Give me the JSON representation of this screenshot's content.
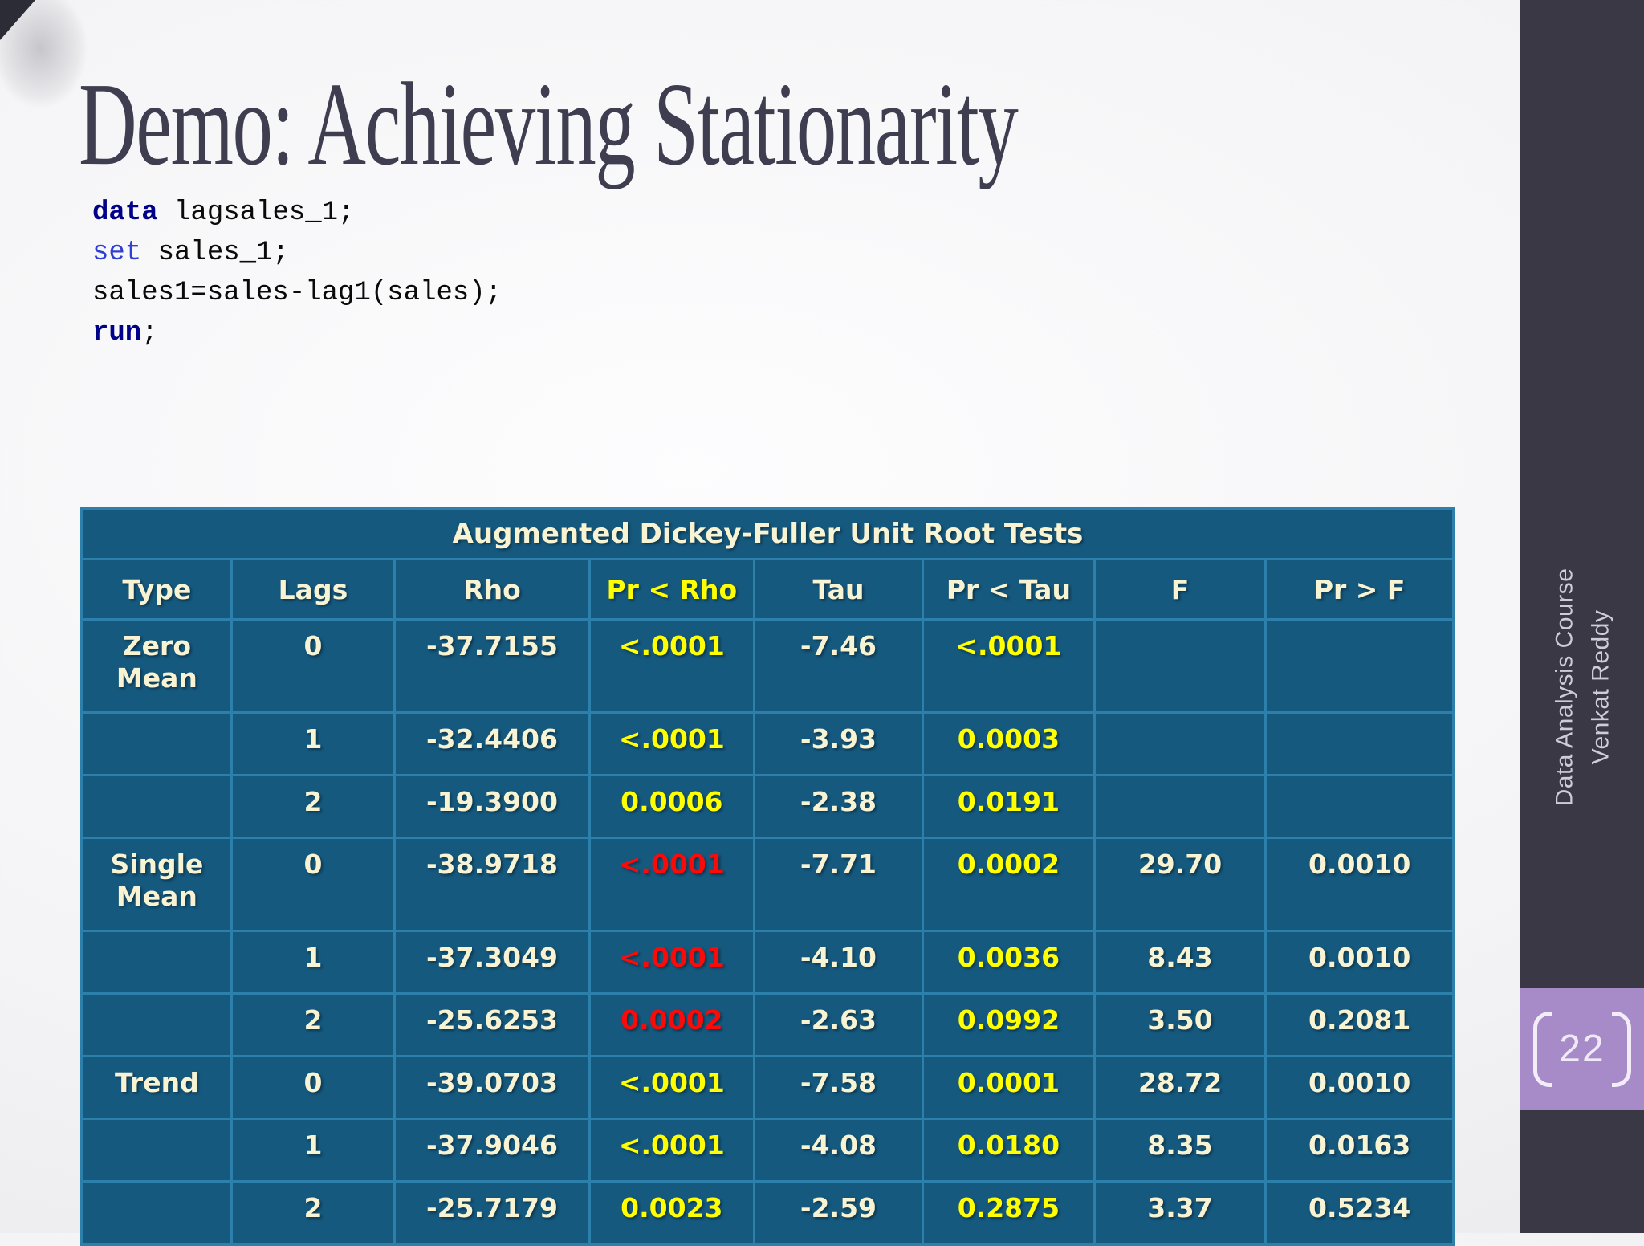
{
  "slide": {
    "title": "Demo: Achieving Stationarity",
    "background_color": "#f4f4f6"
  },
  "code": {
    "lines": [
      {
        "kw": "data",
        "rest": " lagsales_1;"
      },
      {
        "kw": "set",
        "rest": " sales_1;"
      },
      {
        "kw": "",
        "rest": "sales1=sales-lag1(sales);"
      },
      {
        "kw": "run",
        "rest": ";"
      }
    ],
    "keyword_navy_color": "#000089",
    "keyword_blue_color": "#2f3fd3"
  },
  "table": {
    "title": "Augmented Dickey-Fuller Unit Root Tests",
    "background_color": "#15597f",
    "border_color": "#2d7fac",
    "cream_color": "#f7f3d3",
    "yellow_color": "#ffff00",
    "red_color": "#fb0a0a",
    "headers": [
      {
        "t": "Type",
        "c": "w"
      },
      {
        "t": "Lags",
        "c": "w"
      },
      {
        "t": "Rho",
        "c": "w"
      },
      {
        "t": "Pr < Rho",
        "c": "y"
      },
      {
        "t": "Tau",
        "c": "w"
      },
      {
        "t": "Pr < Tau",
        "c": "w"
      },
      {
        "t": "F",
        "c": "w"
      },
      {
        "t": "Pr > F",
        "c": "w"
      }
    ],
    "rows": [
      {
        "tall": true,
        "cells": [
          {
            "t": "Zero\nMean",
            "c": "w"
          },
          {
            "t": "0",
            "c": "w"
          },
          {
            "t": "-37.7155",
            "c": "w"
          },
          {
            "t": "<.0001",
            "c": "y"
          },
          {
            "t": "-7.46",
            "c": "w"
          },
          {
            "t": "<.0001",
            "c": "y"
          },
          {
            "t": "",
            "c": "w"
          },
          {
            "t": "",
            "c": "w"
          }
        ]
      },
      {
        "tall": false,
        "cells": [
          {
            "t": "",
            "c": "w"
          },
          {
            "t": "1",
            "c": "w"
          },
          {
            "t": "-32.4406",
            "c": "w"
          },
          {
            "t": "<.0001",
            "c": "y"
          },
          {
            "t": "-3.93",
            "c": "w"
          },
          {
            "t": "0.0003",
            "c": "y"
          },
          {
            "t": "",
            "c": "w"
          },
          {
            "t": "",
            "c": "w"
          }
        ]
      },
      {
        "tall": false,
        "cells": [
          {
            "t": "",
            "c": "w"
          },
          {
            "t": "2",
            "c": "w"
          },
          {
            "t": "-19.3900",
            "c": "w"
          },
          {
            "t": "0.0006",
            "c": "y"
          },
          {
            "t": "-2.38",
            "c": "w"
          },
          {
            "t": "0.0191",
            "c": "y"
          },
          {
            "t": "",
            "c": "w"
          },
          {
            "t": "",
            "c": "w"
          }
        ]
      },
      {
        "tall": true,
        "cells": [
          {
            "t": "Single\nMean",
            "c": "w"
          },
          {
            "t": "0",
            "c": "w"
          },
          {
            "t": "-38.9718",
            "c": "w"
          },
          {
            "t": "<.0001",
            "c": "r"
          },
          {
            "t": "-7.71",
            "c": "w"
          },
          {
            "t": "0.0002",
            "c": "y"
          },
          {
            "t": "29.70",
            "c": "w"
          },
          {
            "t": "0.0010",
            "c": "w"
          }
        ]
      },
      {
        "tall": false,
        "cells": [
          {
            "t": "",
            "c": "w"
          },
          {
            "t": "1",
            "c": "w"
          },
          {
            "t": "-37.3049",
            "c": "w"
          },
          {
            "t": "<.0001",
            "c": "r"
          },
          {
            "t": "-4.10",
            "c": "w"
          },
          {
            "t": "0.0036",
            "c": "y"
          },
          {
            "t": "8.43",
            "c": "w"
          },
          {
            "t": "0.0010",
            "c": "w"
          }
        ]
      },
      {
        "tall": false,
        "cells": [
          {
            "t": "",
            "c": "w"
          },
          {
            "t": "2",
            "c": "w"
          },
          {
            "t": "-25.6253",
            "c": "w"
          },
          {
            "t": "0.0002",
            "c": "r"
          },
          {
            "t": "-2.63",
            "c": "w"
          },
          {
            "t": "0.0992",
            "c": "y"
          },
          {
            "t": "3.50",
            "c": "w"
          },
          {
            "t": "0.2081",
            "c": "w"
          }
        ]
      },
      {
        "tall": false,
        "cells": [
          {
            "t": "Trend",
            "c": "w"
          },
          {
            "t": "0",
            "c": "w"
          },
          {
            "t": "-39.0703",
            "c": "w"
          },
          {
            "t": "<.0001",
            "c": "y"
          },
          {
            "t": "-7.58",
            "c": "w"
          },
          {
            "t": "0.0001",
            "c": "y"
          },
          {
            "t": "28.72",
            "c": "w"
          },
          {
            "t": "0.0010",
            "c": "w"
          }
        ]
      },
      {
        "tall": false,
        "cells": [
          {
            "t": "",
            "c": "w"
          },
          {
            "t": "1",
            "c": "w"
          },
          {
            "t": "-37.9046",
            "c": "w"
          },
          {
            "t": "<.0001",
            "c": "y"
          },
          {
            "t": "-4.08",
            "c": "w"
          },
          {
            "t": "0.0180",
            "c": "y"
          },
          {
            "t": "8.35",
            "c": "w"
          },
          {
            "t": "0.0163",
            "c": "w"
          }
        ]
      },
      {
        "tall": false,
        "cells": [
          {
            "t": "",
            "c": "w"
          },
          {
            "t": "2",
            "c": "w"
          },
          {
            "t": "-25.7179",
            "c": "w"
          },
          {
            "t": "0.0023",
            "c": "y"
          },
          {
            "t": "-2.59",
            "c": "w"
          },
          {
            "t": "0.2875",
            "c": "y"
          },
          {
            "t": "3.37",
            "c": "w"
          },
          {
            "t": "0.5234",
            "c": "w"
          }
        ]
      }
    ]
  },
  "sidebar": {
    "line1": "Data Analysis Course",
    "line2": "Venkat Reddy",
    "background_color": "#3b3845",
    "text_color": "#cfccd9"
  },
  "page": {
    "number": "22",
    "box_color": "#a78bc8"
  }
}
